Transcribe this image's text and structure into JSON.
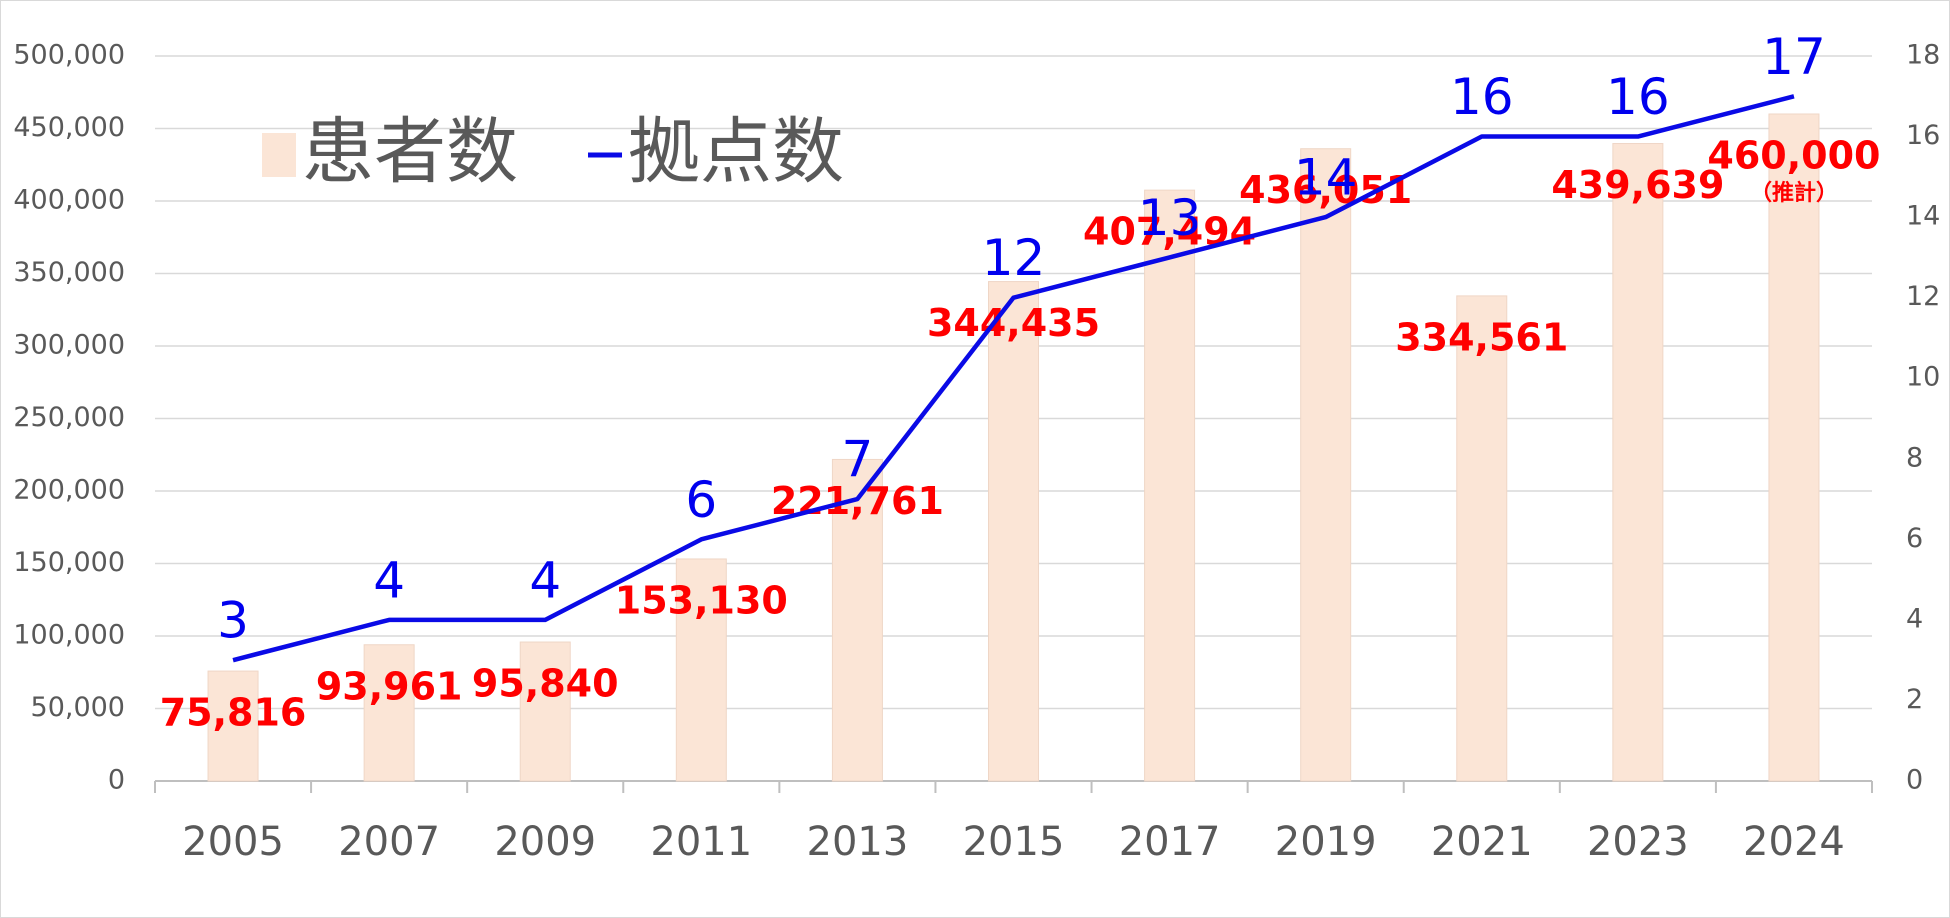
{
  "chart_data": {
    "type": "bar",
    "categories": [
      "2005",
      "2007",
      "2009",
      "2011",
      "2013",
      "2015",
      "2017",
      "2019",
      "2021",
      "2023",
      "2024"
    ],
    "series": [
      {
        "name": "患者数",
        "type": "bar",
        "color": "#fbe5d6",
        "values": [
          75816,
          93961,
          95840,
          153130,
          221761,
          344435,
          407494,
          436051,
          334561,
          439639,
          460000
        ],
        "value_labels": [
          "75,816",
          "93,961",
          "95,840",
          "153,130",
          "221,761",
          "344,435",
          "407,494",
          "436,051",
          "334,561",
          "439,639",
          "460,000"
        ]
      },
      {
        "name": "拠点数",
        "type": "line",
        "axis": "y2",
        "color": "#0a0ae6",
        "values": [
          3,
          4,
          4,
          6,
          7,
          12,
          13,
          14,
          16,
          16,
          17
        ]
      }
    ],
    "ylim": [
      0,
      500000
    ],
    "yticks": [
      0,
      {
        "value": 50000,
        "label": "50,000"
      },
      {
        "value": 100000,
        "label": "100,000"
      },
      {
        "value": 150000,
        "label": "150,000"
      },
      {
        "value": 200000,
        "label": "200,000"
      },
      {
        "value": 250000,
        "label": "250,000"
      },
      {
        "value": 300000,
        "label": "300,000"
      },
      {
        "value": 350000,
        "label": "350,000"
      },
      {
        "value": 400000,
        "label": "400,000"
      },
      {
        "value": 450000,
        "label": "450,000"
      },
      {
        "value": 500000,
        "label": "500,000"
      }
    ],
    "y2lim": [
      0,
      18
    ],
    "y2ticks": [
      0,
      2,
      4,
      6,
      8,
      10,
      12,
      14,
      16,
      18
    ],
    "grid": true,
    "legend": "upper left",
    "annotations": [
      "（推計）"
    ]
  }
}
